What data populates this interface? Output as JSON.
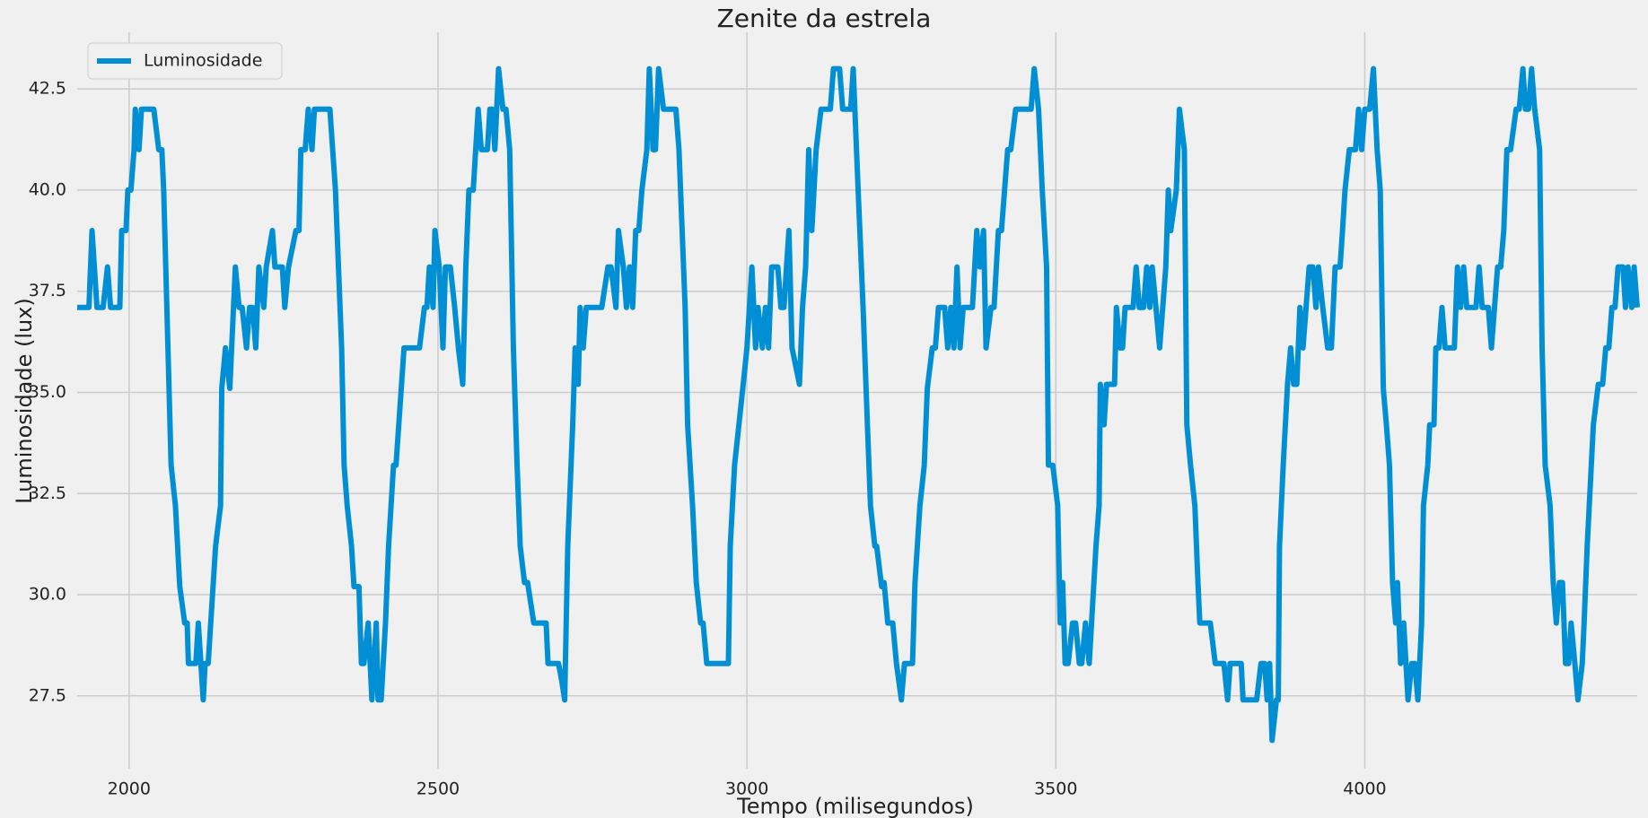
{
  "chart_data": {
    "type": "line",
    "title": "Zenite da estrela",
    "xlabel": "Tempo (milisegundos)",
    "ylabel": "Luminosidade (lux)",
    "xlim": [
      1916,
      4441
    ],
    "xticks": [
      2000,
      2500,
      3000,
      3500,
      4000
    ],
    "ylim": [
      25.7,
      43.9
    ],
    "yticks": [
      27.5,
      {
        "value": 30,
        "label": "30.0"
      },
      32.5,
      {
        "value": 35,
        "label": "35.0"
      },
      37.5,
      {
        "value": 40,
        "label": "40.0"
      },
      42.5
    ],
    "grid": true,
    "legend": "upper left",
    "x": [
      1916,
      1935,
      1940,
      1948,
      1958,
      1965,
      1970,
      1985,
      1988,
      1995,
      1998,
      2003,
      2008,
      2010,
      2016,
      2020,
      2040,
      2048,
      2053,
      2056,
      2068,
      2075,
      2082,
      2090,
      2094,
      2096,
      2108,
      2112,
      2120,
      2123,
      2128,
      2140,
      2148,
      2150,
      2156,
      2163,
      2172,
      2178,
      2183,
      2190,
      2195,
      2200,
      2205,
      2210,
      2218,
      2222,
      2232,
      2236,
      2248,
      2252,
      2258,
      2270,
      2275,
      2278,
      2285,
      2290,
      2296,
      2300,
      2325,
      2334,
      2344,
      2348,
      2353,
      2360,
      2364,
      2372,
      2376,
      2380,
      2387,
      2393,
      2400,
      2403,
      2408,
      2415,
      2420,
      2428,
      2432,
      2445,
      2470,
      2478,
      2482,
      2486,
      2492,
      2495,
      2502,
      2508,
      2512,
      2520,
      2527,
      2533,
      2540,
      2545,
      2550,
      2557,
      2565,
      2570,
      2580,
      2584,
      2588,
      2592,
      2598,
      2605,
      2610,
      2616,
      2622,
      2628,
      2633,
      2640,
      2645,
      2655,
      2675,
      2678,
      2695,
      2700,
      2705,
      2710,
      2718,
      2722,
      2727,
      2730,
      2735,
      2740,
      2765,
      2775,
      2780,
      2788,
      2792,
      2800,
      2805,
      2810,
      2815,
      2820,
      2825,
      2830,
      2838,
      2842,
      2848,
      2852,
      2857,
      2865,
      2885,
      2890,
      2900,
      2904,
      2912,
      2918,
      2925,
      2929,
      2935,
      2970,
      2973,
      2980,
      2987,
      2994,
      3000,
      3008,
      3014,
      3018,
      3025,
      3030,
      3035,
      3040,
      3050,
      3055,
      3060,
      3064,
      3068,
      3073,
      3085,
      3090,
      3095,
      3100,
      3105,
      3112,
      3120,
      3135,
      3140,
      3150,
      3155,
      3168,
      3172,
      3180,
      3188,
      3195,
      3200,
      3207,
      3210,
      3218,
      3222,
      3228,
      3236,
      3242,
      3250,
      3255,
      3268,
      3272,
      3280,
      3287,
      3292,
      3300,
      3305,
      3310,
      3320,
      3325,
      3330,
      3335,
      3340,
      3345,
      3350,
      3365,
      3372,
      3377,
      3383,
      3387,
      3395,
      3400,
      3407,
      3412,
      3417,
      3422,
      3427,
      3435,
      3460,
      3465,
      3472,
      3478,
      3485,
      3488,
      3495,
      3503,
      3507,
      3511,
      3515,
      3520,
      3527,
      3532,
      3538,
      3542,
      3548,
      3554,
      3565,
      3570,
      3572,
      3578,
      3582,
      3595,
      3598,
      3604,
      3608,
      3612,
      3625,
      3630,
      3635,
      3642,
      3647,
      3652,
      3656,
      3662,
      3668,
      3678,
      3682,
      3686,
      3695,
      3700,
      3708,
      3712,
      3718,
      3725,
      3730,
      3733,
      3750,
      3758,
      3772,
      3778,
      3782,
      3800,
      3803,
      3825,
      3832,
      3838,
      3842,
      3846,
      3850,
      3857,
      3860,
      3862,
      3868,
      3875,
      3880,
      3885,
      3890,
      3895,
      3900,
      3905,
      3910,
      3916,
      3921,
      3925,
      3932,
      3940,
      3946,
      3952,
      3960,
      3964,
      3968,
      3975,
      3980,
      3985,
      3990,
      3995,
      4000,
      4008,
      4014,
      4020,
      4025,
      4030,
      4035,
      4040,
      4045,
      4050,
      4053,
      4058,
      4063,
      4070,
      4076,
      4081,
      4086,
      4092,
      4095,
      4102,
      4105,
      4112,
      4115,
      4120,
      4125,
      4130,
      4145,
      4150,
      4155,
      4160,
      4165,
      4180,
      4185,
      4190,
      4200,
      4205,
      4210,
      4215,
      4220,
      4225,
      4230,
      4236,
      4245,
      4250,
      4256,
      4260,
      4265,
      4270,
      4275,
      4283,
      4287,
      4292,
      4300,
      4305,
      4310,
      4315,
      4320,
      4325,
      4330,
      4334,
      4340,
      4345,
      4352,
      4355,
      4360,
      4370,
      4378,
      4385,
      4390,
      4395,
      4400,
      4405,
      4410,
      4418,
      4422,
      4426,
      4432,
      4436,
      4441
    ],
    "series": [
      {
        "name": "Luminosidade",
        "color": "#008fd5",
        "values": [
          37.1,
          37.1,
          39.0,
          37.1,
          37.1,
          38.1,
          37.1,
          37.1,
          39.0,
          39.0,
          40.0,
          40.0,
          41.0,
          42.0,
          41.0,
          42.0,
          42.0,
          41.0,
          41.0,
          40.0,
          33.2,
          32.2,
          30.2,
          29.3,
          29.3,
          28.3,
          28.3,
          29.3,
          27.4,
          28.3,
          28.3,
          31.2,
          32.2,
          35.1,
          36.1,
          35.1,
          38.1,
          37.1,
          37.1,
          36.1,
          37.1,
          37.1,
          36.1,
          38.1,
          37.1,
          38.1,
          39.0,
          38.1,
          38.1,
          37.1,
          38.1,
          39.0,
          39.0,
          41.0,
          41.0,
          42.0,
          41.0,
          42.0,
          42.0,
          40.0,
          36.1,
          33.2,
          32.2,
          31.2,
          30.2,
          30.2,
          28.3,
          28.3,
          29.3,
          27.4,
          29.3,
          27.4,
          27.4,
          29.3,
          31.2,
          33.2,
          33.2,
          36.1,
          36.1,
          37.1,
          37.1,
          38.1,
          37.1,
          39.0,
          38.1,
          36.1,
          38.1,
          38.1,
          37.1,
          36.1,
          35.2,
          38.1,
          40.0,
          40.0,
          42.0,
          41.0,
          41.0,
          42.0,
          42.0,
          41.0,
          43.0,
          42.0,
          42.0,
          41.0,
          36.1,
          33.2,
          31.2,
          30.3,
          30.3,
          29.3,
          29.3,
          28.3,
          28.3,
          27.9,
          27.4,
          31.2,
          34.2,
          36.1,
          35.2,
          37.1,
          36.1,
          37.1,
          37.1,
          38.1,
          38.1,
          37.1,
          39.0,
          38.1,
          37.1,
          38.1,
          37.1,
          39.0,
          39.0,
          40.0,
          41.0,
          43.0,
          41.0,
          41.0,
          43.0,
          42.0,
          42.0,
          41.0,
          37.1,
          34.2,
          32.2,
          30.3,
          29.3,
          29.3,
          28.3,
          28.3,
          31.2,
          33.2,
          34.2,
          35.2,
          36.1,
          38.1,
          36.1,
          37.1,
          36.1,
          37.1,
          36.1,
          38.1,
          38.1,
          37.1,
          37.1,
          38.1,
          39.0,
          36.1,
          35.2,
          37.1,
          38.1,
          41.0,
          39.0,
          41.0,
          42.0,
          42.0,
          43.0,
          43.0,
          42.0,
          42.0,
          43.0,
          40.0,
          37.1,
          34.2,
          32.2,
          31.2,
          31.2,
          30.2,
          30.3,
          29.3,
          29.3,
          28.3,
          27.4,
          28.3,
          28.3,
          30.3,
          32.2,
          33.2,
          35.1,
          36.1,
          36.1,
          37.1,
          37.1,
          36.1,
          37.1,
          36.1,
          38.1,
          36.1,
          37.1,
          37.1,
          39.0,
          38.1,
          39.0,
          36.1,
          37.1,
          37.1,
          39.0,
          39.0,
          40.0,
          41.0,
          41.0,
          42.0,
          42.0,
          43.0,
          42.0,
          40.0,
          38.1,
          33.2,
          33.2,
          32.2,
          29.3,
          30.3,
          28.3,
          28.3,
          29.3,
          29.3,
          28.3,
          28.3,
          29.3,
          28.3,
          31.2,
          32.2,
          35.2,
          34.2,
          35.2,
          35.2,
          37.1,
          36.1,
          36.1,
          37.1,
          37.1,
          38.1,
          37.1,
          37.1,
          38.1,
          37.1,
          38.1,
          37.1,
          36.1,
          38.1,
          40.0,
          39.0,
          40.0,
          42.0,
          41.0,
          34.2,
          33.2,
          32.2,
          30.3,
          29.3,
          29.3,
          28.3,
          28.3,
          27.4,
          28.3,
          28.3,
          27.4,
          27.4,
          28.3,
          28.3,
          27.4,
          28.3,
          26.4,
          27.4,
          27.4,
          31.2,
          33.2,
          35.2,
          36.1,
          35.2,
          35.2,
          37.1,
          36.1,
          37.1,
          38.1,
          38.1,
          37.1,
          38.1,
          37.1,
          36.1,
          36.1,
          38.1,
          38.1,
          39.0,
          40.0,
          41.0,
          41.0,
          41.0,
          42.0,
          41.0,
          42.0,
          42.0,
          43.0,
          41.0,
          40.0,
          35.1,
          34.2,
          33.2,
          30.3,
          29.3,
          30.3,
          28.3,
          29.3,
          27.4,
          28.3,
          28.3,
          27.4,
          29.3,
          32.2,
          33.2,
          34.2,
          34.2,
          36.1,
          36.1,
          37.1,
          36.1,
          36.1,
          38.1,
          37.1,
          38.1,
          37.1,
          37.1,
          38.1,
          37.1,
          37.1,
          36.1,
          37.1,
          38.1,
          38.1,
          39.0,
          41.0,
          41.0,
          42.0,
          42.0,
          43.0,
          42.0,
          42.0,
          43.0,
          42.0,
          41.0,
          36.1,
          33.2,
          32.2,
          30.3,
          29.3,
          30.3,
          30.3,
          28.3,
          28.3,
          29.3,
          28.3,
          27.4,
          28.3,
          29.3,
          31.2,
          34.2,
          35.2,
          35.2,
          36.1,
          36.1,
          37.1,
          37.1,
          38.1,
          38.1,
          37.1,
          38.1,
          37.1,
          38.1,
          37.1
        ]
      }
    ]
  }
}
